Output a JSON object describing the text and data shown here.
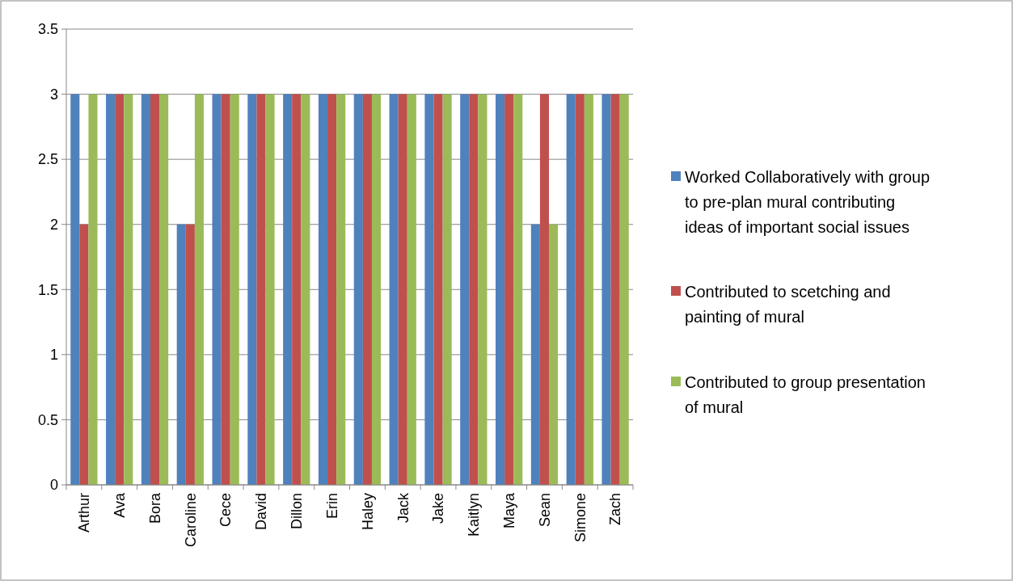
{
  "chart_data": {
    "type": "bar",
    "categories": [
      "Arthur",
      "Ava",
      "Bora",
      "Caroline",
      "Cece",
      "David",
      "Dillon",
      "Erin",
      "Haley",
      "Jack",
      "Jake",
      "Kaitlyn",
      "Maya",
      "Sean",
      "Simone",
      "Zach"
    ],
    "series": [
      {
        "name": "Worked Collaboratively with group to pre-plan mural contributing ideas of important social issues",
        "color": "#4f81bd",
        "values": [
          3,
          3,
          3,
          2,
          3,
          3,
          3,
          3,
          3,
          3,
          3,
          3,
          3,
          2,
          3,
          3
        ]
      },
      {
        "name": "Contributed to scetching and painting of mural",
        "color": "#c0504d",
        "values": [
          2,
          3,
          3,
          2,
          3,
          3,
          3,
          3,
          3,
          3,
          3,
          3,
          3,
          3,
          3,
          3
        ]
      },
      {
        "name": "Contributed to group presentation of mural",
        "color": "#9bbb59",
        "values": [
          3,
          3,
          3,
          3,
          3,
          3,
          3,
          3,
          3,
          3,
          3,
          3,
          3,
          2,
          3,
          3
        ]
      }
    ],
    "ylim": [
      0,
      3.5
    ],
    "yticks": [
      0,
      0.5,
      1,
      1.5,
      2,
      2.5,
      3,
      3.5
    ],
    "grid": "y",
    "legend": "right"
  }
}
